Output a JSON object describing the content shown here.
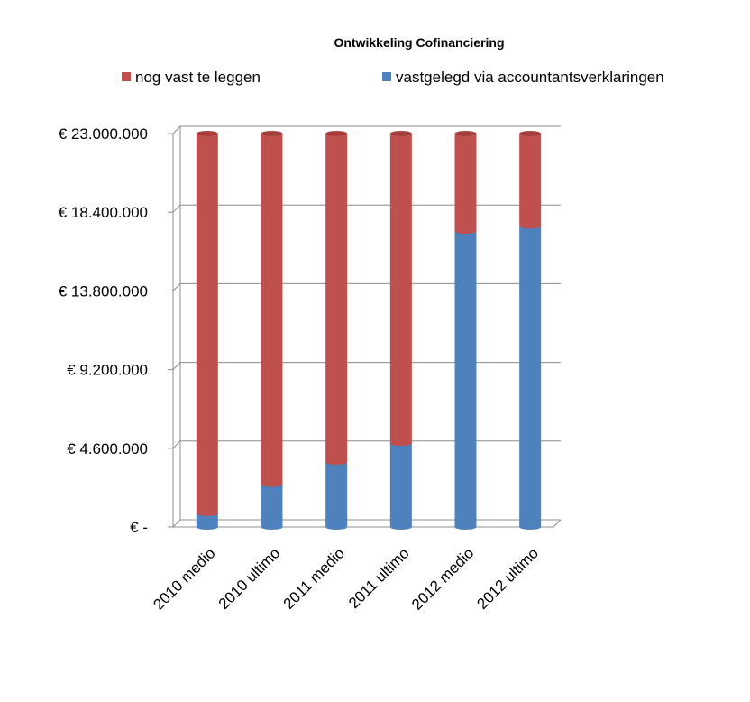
{
  "chart_data": {
    "type": "bar",
    "stacked": true,
    "title": "Ontwikkeling Cofinanciering",
    "categories": [
      "2010 medio",
      "2010 ultimo",
      "2011 medio",
      "2011 ultimo",
      "2012 medio",
      "2012 ultimo"
    ],
    "series": [
      {
        "name": "vastgelegd via accountantsverklaringen",
        "color": "#4f81bd",
        "values": [
          800000,
          2500000,
          3800000,
          4900000,
          17300000,
          17600000
        ]
      },
      {
        "name": "nog vast te leggen",
        "color": "#c0504d",
        "values": [
          22200000,
          20500000,
          19200000,
          18100000,
          5700000,
          5400000
        ]
      }
    ],
    "yticks": [
      "€ -",
      "€ 4.600.000",
      "€ 9.200.000",
      "€ 13.800.000",
      "€ 18.400.000",
      "€ 23.000.000"
    ],
    "ylim": [
      0,
      23000000
    ],
    "grid": true,
    "legend": "top"
  }
}
